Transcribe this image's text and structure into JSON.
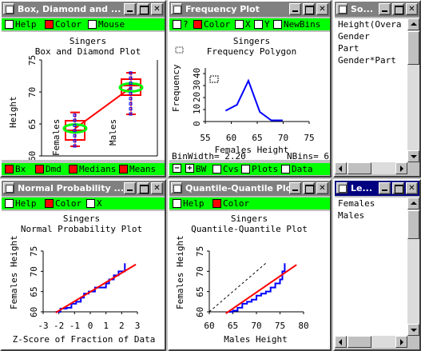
{
  "windows": {
    "box": {
      "title": "Box, Diamond and ...",
      "menu": [
        {
          "label": "Help",
          "checked": false
        },
        {
          "label": "Color",
          "checked": true
        },
        {
          "label": "Mouse",
          "checked": false
        }
      ],
      "plot_title": "Singers",
      "plot_subtitle": "Box and Diamond Plot",
      "ylabel": "Height",
      "yticks": [
        "60",
        "65",
        "70",
        "75"
      ],
      "group_labels": [
        "Females",
        "Males"
      ],
      "options": [
        {
          "label": "Bx",
          "checked": true
        },
        {
          "label": "Dmd",
          "checked": true
        },
        {
          "label": "Medians",
          "checked": true
        },
        {
          "label": "Means",
          "checked": true
        }
      ]
    },
    "freq": {
      "title": "Frequency Plot",
      "menu": [
        {
          "label": "?",
          "checked": false
        },
        {
          "label": "Color",
          "checked": true
        },
        {
          "label": "X",
          "checked": false
        },
        {
          "label": "Y",
          "checked": false
        },
        {
          "label": "NewBins",
          "checked": false
        }
      ],
      "plot_title": "Singers",
      "plot_subtitle": "Frequency Polygon",
      "binwidth_text": "BinWidth= 2.20",
      "nbins_text": "NBins= 6",
      "options": [
        {
          "label": "BW",
          "checked": false
        },
        {
          "label": "Cvs",
          "checked": false
        },
        {
          "label": "Plots",
          "checked": false
        },
        {
          "label": "Data",
          "checked": false
        }
      ],
      "minus_label": "−",
      "plus_label": "+"
    },
    "so": {
      "title": "So...",
      "items": [
        "Height(Overa",
        "Gender",
        "Part",
        "Gender*Part"
      ]
    },
    "normal": {
      "title": "Normal Probability ...",
      "menu": [
        {
          "label": "Help",
          "checked": false
        },
        {
          "label": "Color",
          "checked": true
        },
        {
          "label": "X",
          "checked": false
        }
      ],
      "plot_title": "Singers",
      "plot_subtitle": "Normal Probability Plot"
    },
    "qq": {
      "title": "Quantile-Quantile Plot",
      "menu": [
        {
          "label": "Help",
          "checked": false
        },
        {
          "label": "Color",
          "checked": true
        }
      ],
      "plot_title": "Singers",
      "plot_subtitle": "Quantile-Quantile Plot"
    },
    "le": {
      "title": "Le...",
      "items": [
        "Females",
        "Males"
      ]
    }
  },
  "colors": {
    "active_title": "#000080",
    "inactive_title": "#808080",
    "toolbar": "#00ff00",
    "line": "#0000ff",
    "fit": "#ff0000",
    "ellipse": "#00ff00"
  },
  "chart_data": [
    {
      "type": "box",
      "categories": [
        "Females",
        "Males"
      ],
      "ylabel": "Height",
      "ylim": [
        60,
        75
      ],
      "yticks": [
        60,
        65,
        70,
        75
      ],
      "medians": [
        64,
        71
      ],
      "means": [
        64.3,
        70.7
      ],
      "quartiles": [
        [
          62.5,
          65.5
        ],
        [
          69.5,
          72
        ]
      ],
      "whiskers": [
        [
          61.5,
          66.8
        ],
        [
          66.5,
          73
        ]
      ]
    },
    {
      "type": "line",
      "title": "Frequency Polygon",
      "xlabel": "Females Height",
      "ylabel": "Frequency",
      "xlim": [
        55,
        75
      ],
      "ylim": [
        0,
        40
      ],
      "xticks": [
        55,
        60,
        65,
        70,
        75
      ],
      "yticks": [
        0,
        10,
        20,
        30,
        40
      ],
      "x": [
        58.9,
        61.1,
        63.3,
        65.5,
        67.7,
        69.9
      ],
      "y": [
        9,
        14,
        34,
        8,
        1,
        1
      ]
    },
    {
      "type": "line",
      "title": "Normal Probability Plot",
      "xlabel": "Z-Score of Fraction of Data",
      "ylabel": "Females Height",
      "xlim": [
        -3,
        3
      ],
      "ylim": [
        60,
        75
      ],
      "xticks": [
        -3,
        -2,
        -1,
        0,
        1,
        2,
        3
      ],
      "yticks": [
        60,
        65,
        70,
        75
      ],
      "series": [
        {
          "x": [
            -2.2,
            -1.9,
            -1.5,
            -1.2,
            -0.9,
            -0.6,
            -0.4,
            -0.1,
            0.1,
            0.3,
            0.7,
            1.0,
            1.2,
            1.5,
            1.8,
            2.2
          ],
          "y": [
            60,
            60.8,
            61,
            62,
            62.5,
            63.5,
            64.5,
            65,
            65,
            66,
            66,
            67,
            68,
            69,
            70,
            72
          ]
        },
        {
          "x": [
            -2.2,
            2.9
          ],
          "y": [
            59.8,
            71.7
          ]
        }
      ]
    },
    {
      "type": "line",
      "title": "Quantile-Quantile Plot",
      "xlabel": "Males Height",
      "ylabel": "Females Height",
      "xlim": [
        60,
        80
      ],
      "ylim": [
        60,
        75
      ],
      "xticks": [
        60,
        65,
        70,
        75,
        80
      ],
      "yticks": [
        60,
        65,
        70,
        75
      ],
      "series": [
        {
          "x": [
            64,
            65,
            66,
            67,
            68,
            69,
            70,
            71,
            72,
            73,
            74,
            75,
            75.5,
            76
          ],
          "y": [
            60,
            60.3,
            61,
            62,
            62.5,
            63,
            64,
            64.5,
            65,
            66,
            67,
            68,
            70,
            72
          ]
        },
        {
          "x": [
            63.5,
            78.5
          ],
          "y": [
            59.6,
            71.6
          ]
        },
        {
          "x": [
            60,
            72
          ],
          "y": [
            60,
            72
          ]
        }
      ]
    }
  ]
}
